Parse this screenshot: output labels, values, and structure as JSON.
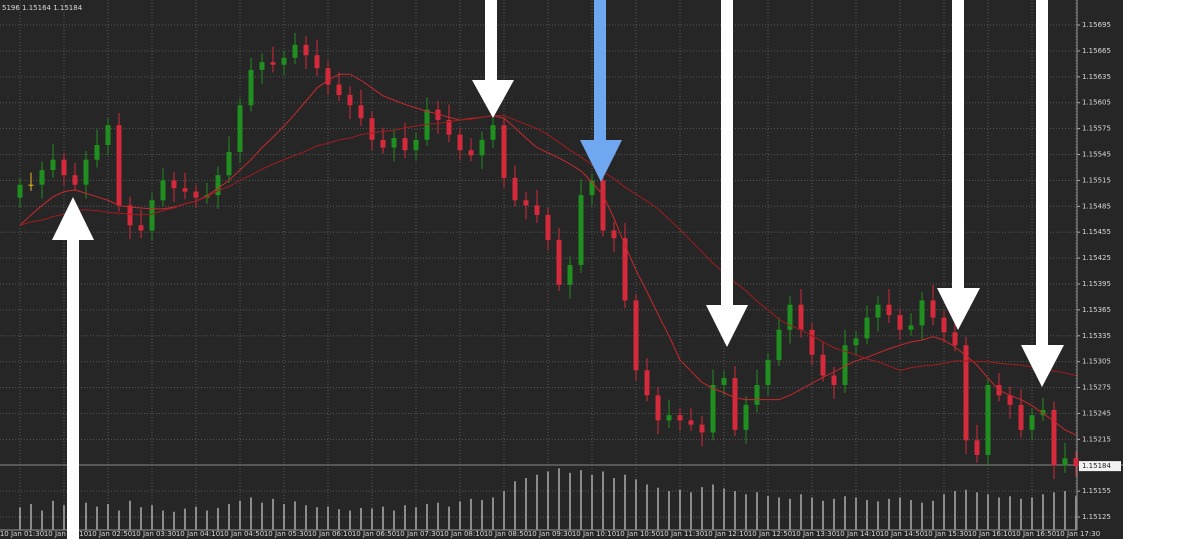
{
  "chart_data": {
    "type": "candlestick",
    "header": "5196 1.15164 1.15184",
    "categories": [
      "10 Jan 01:30",
      null,
      null,
      null,
      "10 Jan 02:10",
      null,
      null,
      null,
      "10 Jan 02:50",
      null,
      null,
      null,
      "10 Jan 03:30",
      null,
      null,
      null,
      "10 Jan 04:10",
      null,
      null,
      null,
      "10 Jan 04:50",
      null,
      null,
      null,
      "10 Jan 05:30",
      null,
      null,
      null,
      "10 Jan 06:10",
      null,
      null,
      null,
      "10 Jan 06:50",
      null,
      null,
      null,
      "10 Jan 07:30",
      null,
      null,
      null,
      "10 Jan 08:10",
      null,
      null,
      null,
      "10 Jan 08:50",
      null,
      null,
      null,
      "10 Jan 09:30",
      null,
      null,
      null,
      "10 Jan 10:10",
      null,
      null,
      null,
      "10 Jan 10:50",
      null,
      null,
      null,
      "10 Jan 11:30",
      null,
      null,
      null,
      "10 Jan 12:10",
      null,
      null,
      null,
      "10 Jan 12:50",
      null,
      null,
      null,
      "10 Jan 13:30",
      null,
      null,
      null,
      "10 Jan 14:10",
      null,
      null,
      null,
      "10 Jan 14:50",
      null,
      null,
      null,
      "10 Jan 15:30",
      null,
      null,
      null,
      "10 Jan 16:10",
      null,
      null,
      null,
      "10 Jan 16:50",
      null,
      null,
      null,
      "10 Jan 17:30"
    ],
    "open": [
      1.15495,
      1.1551,
      1.1551,
      1.15527,
      1.15539,
      1.15521,
      1.1551,
      1.15539,
      1.15556,
      1.15579,
      1.15486,
      1.15463,
      1.15457,
      1.15492,
      1.15515,
      1.15506,
      1.15502,
      1.15495,
      1.15498,
      1.15521,
      1.15548,
      1.15602,
      1.15643,
      1.15652,
      1.15649,
      1.15657,
      1.15672,
      1.1566,
      1.15645,
      1.15626,
      1.15614,
      1.15602,
      1.15587,
      1.15562,
      1.15553,
      1.15564,
      1.1555,
      1.15562,
      1.15597,
      1.15585,
      1.15568,
      1.1555,
      1.15544,
      1.15562,
      1.15579,
      1.15518,
      1.15492,
      1.15486,
      1.15475,
      1.15446,
      1.15394,
      1.15417,
      1.15498,
      1.15515,
      1.15457,
      1.15448,
      1.15376,
      1.15295,
      1.15266,
      1.15237,
      1.15243,
      1.15237,
      1.15232,
      1.15223,
      1.15278,
      1.15286,
      1.15226,
      1.15255,
      1.15278,
      1.15307,
      1.15342,
      1.15371,
      1.15342,
      1.15313,
      1.15289,
      1.15278,
      1.15324,
      1.15332,
      1.15356,
      1.15371,
      1.15359,
      1.15342,
      1.15347,
      1.15376,
      1.15356,
      1.15339,
      1.15324,
      1.15214,
      1.15197,
      1.15278,
      1.15266,
      1.15255,
      1.15226,
      1.15243,
      1.15249,
      1.15185,
      1.15193
    ],
    "high": [
      1.15518,
      1.15524,
      1.15537,
      1.15557,
      1.15547,
      1.15535,
      1.15549,
      1.15574,
      1.15587,
      1.15593,
      1.15496,
      1.15481,
      1.155,
      1.15529,
      1.15525,
      1.15524,
      1.1551,
      1.15512,
      1.15531,
      1.15566,
      1.1561,
      1.15657,
      1.15662,
      1.1567,
      1.15665,
      1.15686,
      1.15682,
      1.15678,
      1.15653,
      1.1564,
      1.15624,
      1.1562,
      1.15595,
      1.15576,
      1.15574,
      1.15582,
      1.1557,
      1.15611,
      1.15607,
      1.15603,
      1.15576,
      1.15564,
      1.15572,
      1.15597,
      1.15587,
      1.15532,
      1.15502,
      1.15504,
      1.15483,
      1.1546,
      1.15427,
      1.15516,
      1.15523,
      1.15529,
      1.15467,
      1.15466,
      1.15384,
      1.15309,
      1.15276,
      1.15261,
      1.15251,
      1.15251,
      1.15242,
      1.15296,
      1.15294,
      1.153,
      1.15265,
      1.15296,
      1.15315,
      1.15356,
      1.15381,
      1.15389,
      1.1535,
      1.15327,
      1.15299,
      1.15342,
      1.1534,
      1.1537,
      1.15381,
      1.15389,
      1.15367,
      1.15361,
      1.15386,
      1.15394,
      1.15364,
      1.15353,
      1.15334,
      1.15232,
      1.15286,
      1.15292,
      1.15276,
      1.15273,
      1.15251,
      1.15263,
      1.15259,
      1.15211,
      1.15201
    ],
    "low": [
      1.15483,
      1.15503,
      1.15494,
      1.15518,
      1.15509,
      1.15503,
      1.15494,
      1.1553,
      1.15544,
      1.15479,
      1.15447,
      1.15448,
      1.15445,
      1.15485,
      1.1549,
      1.15493,
      1.15483,
      1.15488,
      1.15482,
      1.15512,
      1.15536,
      1.15595,
      1.15627,
      1.1564,
      1.15637,
      1.1565,
      1.15644,
      1.15636,
      1.15614,
      1.15607,
      1.15586,
      1.15578,
      1.1555,
      1.15546,
      1.15537,
      1.15541,
      1.15538,
      1.15555,
      1.15569,
      1.15559,
      1.15538,
      1.15537,
      1.15528,
      1.15553,
      1.15506,
      1.15485,
      1.1547,
      1.15466,
      1.15434,
      1.15387,
      1.15378,
      1.15408,
      1.15486,
      1.1545,
      1.15432,
      1.15367,
      1.15283,
      1.15259,
      1.15221,
      1.15228,
      1.15225,
      1.15225,
      1.15207,
      1.15214,
      1.15266,
      1.15219,
      1.1521,
      1.15246,
      1.15266,
      1.153,
      1.15326,
      1.15333,
      1.15301,
      1.15282,
      1.15262,
      1.15269,
      1.15312,
      1.15325,
      1.1534,
      1.1535,
      1.1533,
      1.15335,
      1.15331,
      1.15347,
      1.15327,
      1.15317,
      1.15198,
      1.15188,
      1.15185,
      1.15259,
      1.15239,
      1.15217,
      1.15214,
      1.15236,
      1.15169,
      1.15176,
      1.15172
    ],
    "close": [
      1.1551,
      1.1551,
      1.15527,
      1.15539,
      1.15521,
      1.1551,
      1.15539,
      1.15556,
      1.15579,
      1.15486,
      1.15463,
      1.15457,
      1.15492,
      1.15515,
      1.15506,
      1.15502,
      1.15495,
      1.15498,
      1.15521,
      1.15548,
      1.15602,
      1.15643,
      1.15652,
      1.15649,
      1.15657,
      1.15672,
      1.1566,
      1.15645,
      1.15626,
      1.15614,
      1.15602,
      1.15587,
      1.15562,
      1.15553,
      1.15564,
      1.1555,
      1.15562,
      1.15597,
      1.15585,
      1.15568,
      1.1555,
      1.15544,
      1.15562,
      1.15579,
      1.15518,
      1.15492,
      1.15486,
      1.15475,
      1.15446,
      1.15394,
      1.15417,
      1.15498,
      1.15515,
      1.15457,
      1.15448,
      1.15376,
      1.15295,
      1.15266,
      1.15237,
      1.15243,
      1.15237,
      1.15232,
      1.15223,
      1.15278,
      1.15286,
      1.15226,
      1.15255,
      1.15278,
      1.15307,
      1.15342,
      1.15371,
      1.15342,
      1.15313,
      1.15289,
      1.15278,
      1.15324,
      1.15332,
      1.15356,
      1.15371,
      1.15359,
      1.15342,
      1.15347,
      1.15376,
      1.15356,
      1.15339,
      1.15324,
      1.15214,
      1.15197,
      1.15278,
      1.15266,
      1.15255,
      1.15226,
      1.15243,
      1.15249,
      1.15185,
      1.15193,
      1.15184
    ],
    "volume": [
      35,
      40,
      30,
      45,
      38,
      33,
      42,
      36,
      40,
      30,
      45,
      35,
      38,
      30,
      28,
      33,
      36,
      30,
      34,
      40,
      45,
      50,
      42,
      48,
      40,
      44,
      38,
      35,
      36,
      32,
      30,
      34,
      33,
      36,
      30,
      38,
      35,
      40,
      42,
      36,
      44,
      48,
      46,
      50,
      60,
      75,
      80,
      85,
      90,
      95,
      88,
      92,
      85,
      90,
      80,
      85,
      78,
      70,
      65,
      60,
      62,
      58,
      66,
      70,
      64,
      60,
      55,
      58,
      52,
      50,
      48,
      55,
      50,
      45,
      48,
      52,
      50,
      46,
      44,
      48,
      50,
      46,
      42,
      45,
      55,
      60,
      62,
      58,
      55,
      50,
      52,
      48,
      50,
      55,
      58,
      60,
      52
    ],
    "vlim": [
      0,
      100
    ],
    "lines": [
      {
        "color": "#c8282d",
        "values": [
          1.15463,
          1.15475,
          1.15486,
          1.15496,
          1.15502,
          1.15504,
          1.155,
          1.15496,
          1.15492,
          1.15486,
          1.15484,
          1.15483,
          1.15482,
          1.15482,
          1.15484,
          1.15488,
          1.15491,
          1.15497,
          1.15506,
          1.15515,
          1.15527,
          1.15539,
          1.15553,
          1.15565,
          1.15578,
          1.15592,
          1.15607,
          1.15622,
          1.15631,
          1.15638,
          1.15638,
          1.15631,
          1.15622,
          1.15613,
          1.15608,
          1.15603,
          1.15599,
          1.15595,
          1.15592,
          1.15588,
          1.15585,
          1.15587,
          1.15588,
          1.1559,
          1.15587,
          1.15576,
          1.15564,
          1.15553,
          1.15547,
          1.15541,
          1.15534,
          1.15526,
          1.15513,
          1.15498,
          1.15471,
          1.1544,
          1.15411,
          1.15386,
          1.1536,
          1.15335,
          1.15307,
          1.15294,
          1.15281,
          1.15274,
          1.15269,
          1.15263,
          1.15261,
          1.15261,
          1.15261,
          1.15261,
          1.15266,
          1.15273,
          1.1528,
          1.15287,
          1.15293,
          1.153,
          1.15306,
          1.1531,
          1.15315,
          1.1532,
          1.15324,
          1.15328,
          1.1533,
          1.15334,
          1.1533,
          1.15322,
          1.15312,
          1.15301,
          1.15286,
          1.15272,
          1.15266,
          1.15261,
          1.15254,
          1.15245,
          1.15236,
          1.15226,
          1.1522
        ]
      },
      {
        "color": "#9e1c20",
        "values": [
          1.15463,
          1.15467,
          1.15469,
          1.15473,
          1.15476,
          1.1548,
          1.15481,
          1.1548,
          1.15478,
          1.15477,
          1.15476,
          1.15475,
          1.15476,
          1.1548,
          1.15483,
          1.15488,
          1.15491,
          1.15496,
          1.15503,
          1.15508,
          1.15515,
          1.15521,
          1.15528,
          1.15534,
          1.15539,
          1.15544,
          1.15549,
          1.15555,
          1.15558,
          1.15562,
          1.15564,
          1.15568,
          1.1557,
          1.15572,
          1.15573,
          1.15576,
          1.15578,
          1.1558,
          1.15581,
          1.15583,
          1.15585,
          1.15586,
          1.15588,
          1.1559,
          1.1559,
          1.15585,
          1.1558,
          1.15575,
          1.15568,
          1.15559,
          1.1555,
          1.15542,
          1.15533,
          1.15525,
          1.15517,
          1.15507,
          1.15499,
          1.15491,
          1.15482,
          1.1547,
          1.15458,
          1.15445,
          1.15432,
          1.15419,
          1.15408,
          1.15397,
          1.15387,
          1.15375,
          1.15365,
          1.15354,
          1.15347,
          1.15342,
          1.15335,
          1.15328,
          1.15321,
          1.15317,
          1.15313,
          1.15308,
          1.15305,
          1.153,
          1.15295,
          1.15298,
          1.153,
          1.15301,
          1.15303,
          1.15306,
          1.15306,
          1.15305,
          1.15305,
          1.15303,
          1.15302,
          1.15301,
          1.15299,
          1.15296,
          1.15294,
          1.15292,
          1.15289
        ]
      }
    ],
    "up_color": "#1f8f1f",
    "down_color": "#d42a3c",
    "flat_color": "#e8c020",
    "volume_color": "#8c8c8c",
    "ylim": [
      1.1511,
      1.15724
    ],
    "yticks": [
      1.15125,
      1.15155,
      1.15215,
      1.15245,
      1.15275,
      1.15305,
      1.15335,
      1.15365,
      1.15395,
      1.15425,
      1.15455,
      1.15485,
      1.15515,
      1.15545,
      1.15575,
      1.15605,
      1.15635,
      1.15665,
      1.15695
    ],
    "last_price": 1.15184,
    "grid": true
  }
}
